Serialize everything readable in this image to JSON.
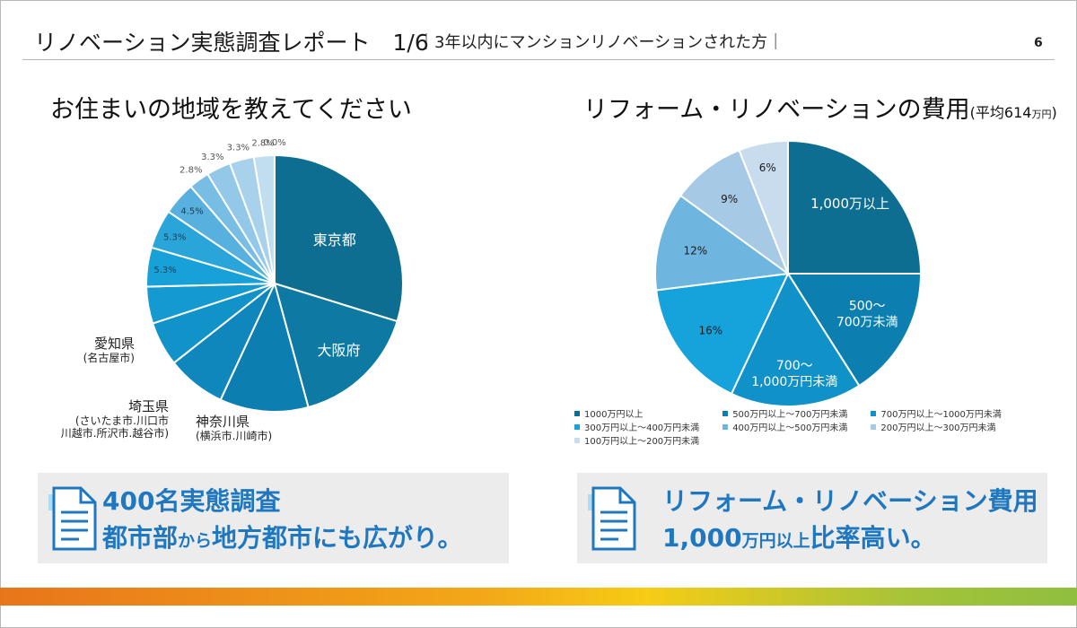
{
  "header": {
    "title": "リノベーション実態調査レポート　1/6",
    "subtitle": "｜3年以内にマンションリノベーションされた方｜",
    "page_number": "6"
  },
  "left_chart": {
    "title": "お住まいの地域を教えてください",
    "inside_labels": {
      "tokyo": "東京都",
      "osaka": "大阪府"
    },
    "regions": {
      "kanagawa": {
        "name": "神奈川県",
        "detail": "(横浜市.川崎市)"
      },
      "saitama": {
        "name": "埼玉県",
        "detail_1": "(さいたま市.川口市",
        "detail_2": "川越市.所沢市.越谷市)"
      },
      "aichi": {
        "name": "愛知県",
        "detail": "(名古屋市)"
      }
    },
    "small_slice_labels": [
      "5.3%",
      "5.3%",
      "4.5%",
      "2.8%",
      "3.3%",
      "3.3%",
      "2.8%",
      "0.0%"
    ]
  },
  "right_chart": {
    "title": "リフォーム・リノベーションの費用",
    "average_prefix": "(平均614",
    "average_unit": "万円",
    "average_suffix": ")",
    "inside_labels": {
      "l1": "1,000万以上",
      "l2a": "500～",
      "l2b": "700万未満",
      "l3a": "700～",
      "l3b": "1,000万円未満",
      "l4": "16%",
      "l5": "12%",
      "l6": "9%",
      "l7": "6%"
    },
    "legend": [
      "1000万円以上",
      "500万円以上～700万円未満",
      "700万円以上～1000万円未満",
      "300万円以上～400万円未満",
      "400万円以上～500万円未満",
      "200万円以上～300万円未満",
      "100万円以上～200万円未満"
    ]
  },
  "chart_data": [
    {
      "type": "pie",
      "title": "お住まいの地域を教えてください",
      "categories": [
        "東京都",
        "大阪府",
        "神奈川県",
        "埼玉県",
        "愛知県",
        "",
        "",
        "",
        "",
        "",
        "",
        "",
        "",
        ""
      ],
      "values": [
        32.0,
        17.2,
        12.0,
        8.0,
        6.0,
        5.0,
        5.3,
        5.3,
        4.5,
        2.8,
        3.3,
        3.3,
        2.8,
        0.0
      ],
      "colors": [
        "#0d6e91",
        "#0e7aa3",
        "#0c7fb0",
        "#0f87bd",
        "#1192c8",
        "#1499d0",
        "#18a1d8",
        "#2aa5da",
        "#58b0de",
        "#78bde3",
        "#93c8e8",
        "#a8d1ec",
        "#c1ddf0",
        "#d6e9f5"
      ]
    },
    {
      "type": "pie",
      "title": "リフォーム・リノベーションの費用",
      "categories": [
        "1000万円以上",
        "500万円以上～700万円未満",
        "700万円以上～1000万円未満",
        "300万円以上～400万円未満",
        "400万円以上～500万円未満",
        "200万円以上～300万円未満",
        "100万円以上～200万円未満"
      ],
      "values": [
        25,
        16,
        16,
        16,
        12,
        9,
        6
      ],
      "colors": [
        "#0d6e91",
        "#0c7fb0",
        "#1092c8",
        "#16a3db",
        "#6eb6e0",
        "#a6c9e5",
        "#c8dced"
      ]
    }
  ],
  "callouts": {
    "left_line1": "400名実態調査",
    "left_line2a": "都市部",
    "left_line2b": "から",
    "left_line2c": "地方都市にも広がり。",
    "right_line1": "リフォーム・リノベーション費用",
    "right_line2a": "1,000",
    "right_line2b": "万円以上",
    "right_line2c": "比率高い。"
  },
  "icons": {
    "document": "document-icon"
  }
}
